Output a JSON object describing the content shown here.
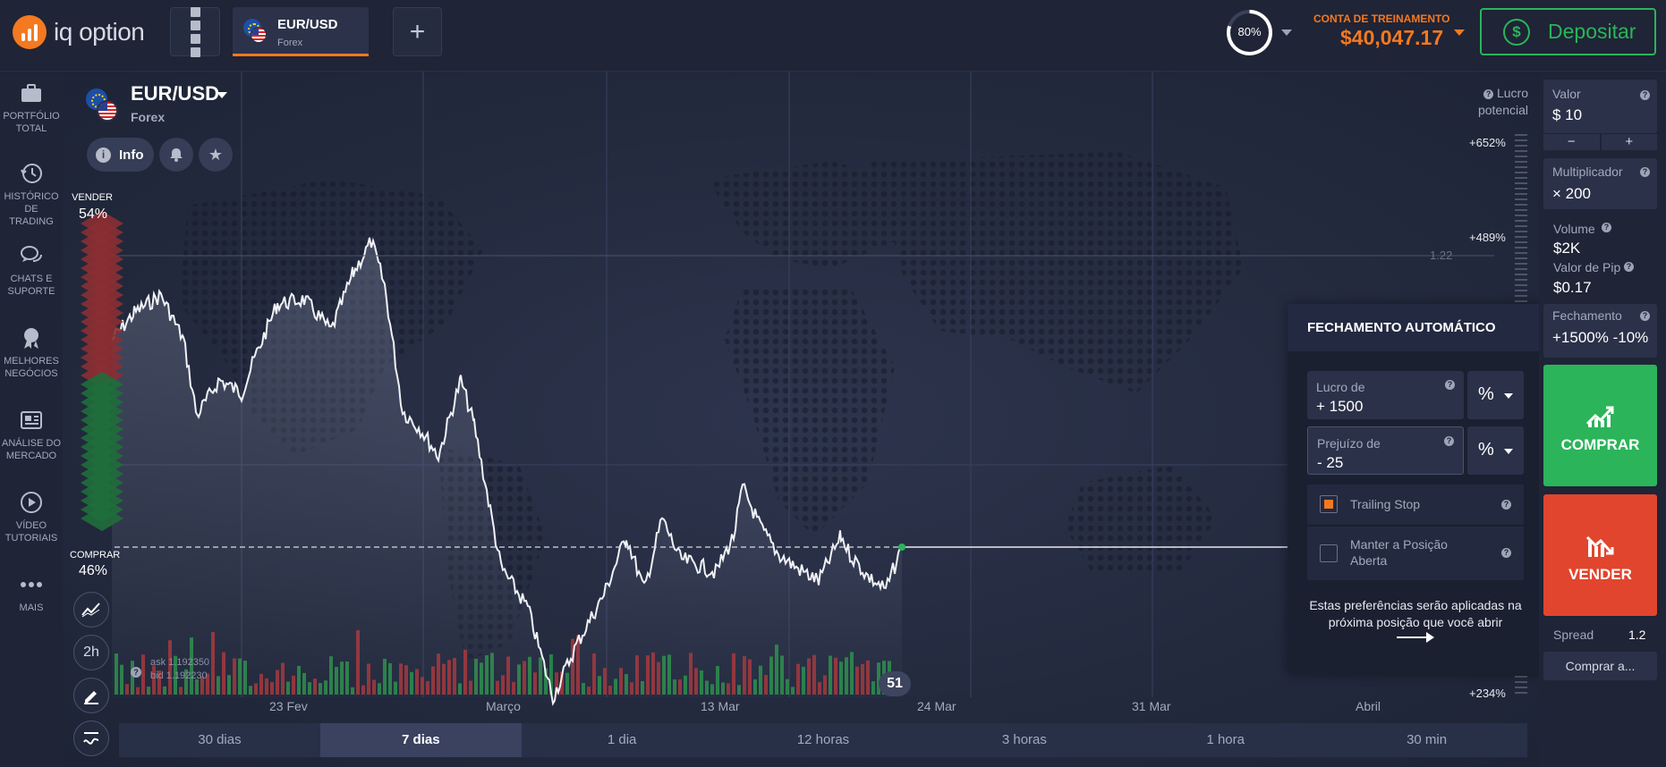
{
  "brand": {
    "name": "iq option",
    "accent": "#f47920"
  },
  "header": {
    "asset_tab": {
      "name": "EUR/USD",
      "category": "Forex"
    },
    "add_tab_symbol": "+",
    "payout_ring": {
      "value": "80%",
      "fraction": 0.8
    },
    "account": {
      "label": "CONTA DE TREINAMENTO",
      "balance": "$40,047.17"
    },
    "deposit_label": "Depositar"
  },
  "sidebar": {
    "items": [
      {
        "label1": "PORTFÓLIO",
        "label2": "TOTAL",
        "icon": "briefcase-icon"
      },
      {
        "label1": "HISTÓRICO DE",
        "label2": "TRADING",
        "icon": "history-icon"
      },
      {
        "label1": "CHATS E",
        "label2": "SUPORTE",
        "icon": "chat-icon"
      },
      {
        "label1": "MELHORES",
        "label2": "NEGÓCIOS",
        "icon": "award-icon"
      },
      {
        "label1": "ANÁLISE DO",
        "label2": "MERCADO",
        "icon": "newspaper-icon"
      },
      {
        "label1": "VÍDEO",
        "label2": "TUTORIAIS",
        "icon": "play-icon"
      },
      {
        "label1": "MAIS",
        "label2": "",
        "icon": "more-icon"
      }
    ]
  },
  "asset": {
    "name": "EUR/USD",
    "category": "Forex",
    "info_label": "Info"
  },
  "sentiment": {
    "sell_label": "VENDER",
    "sell_pct": "54%",
    "buy_label": "COMPRAR",
    "buy_pct": "46%"
  },
  "tools": {
    "timeframe_label": "2h"
  },
  "quote": {
    "ask": "ask 1.192350",
    "bid": "bid 1.192230"
  },
  "timer": "51",
  "price_line_label": "1.22",
  "profit_scale": {
    "label1": "Lucro",
    "label2": "potencial",
    "top": "+652%",
    "mid": "+489%",
    "bottom": "+234%"
  },
  "chart_data": {
    "type": "line",
    "x_tick_labels": [
      "23 Fev",
      "Março",
      "13 Mar",
      "24 Mar",
      "31 Mar",
      "Abril"
    ],
    "volume_bars": "green/red volume histogram"
  },
  "timeframes": [
    "30 dias",
    "7 dias",
    "1 dia",
    "12 horas",
    "3 horas",
    "1 hora",
    "30 min"
  ],
  "autoclose": {
    "title": "FECHAMENTO AUTOMÁTICO",
    "profit_label": "Lucro de",
    "profit_value": "+ 1500",
    "loss_label": "Prejuízo de",
    "loss_value": "-  25",
    "unit": "%",
    "trailing_stop": "Trailing Stop",
    "keep_open": "Manter a Posição Aberta",
    "note": "Estas preferências serão aplicadas na próxima posição que você abrir"
  },
  "trade_panel": {
    "valor_label": "Valor",
    "valor_value": "$  10",
    "multiplicador_label": "Multiplicador",
    "multiplicador_value": "× 200",
    "volume_label": "Volume",
    "volume_value": "$2K",
    "pip_label": "Valor de Pip",
    "pip_value": "$0.17",
    "fechamento_label": "Fechamento",
    "fechamento_value": "+1500% -10%",
    "buy_label": "COMPRAR",
    "sell_label": "VENDER",
    "spread_label": "Spread",
    "spread_value": "1.2",
    "buy_at_label": "Comprar a...",
    "buy_color": "#2bb45a",
    "sell_color": "#e1452e"
  }
}
